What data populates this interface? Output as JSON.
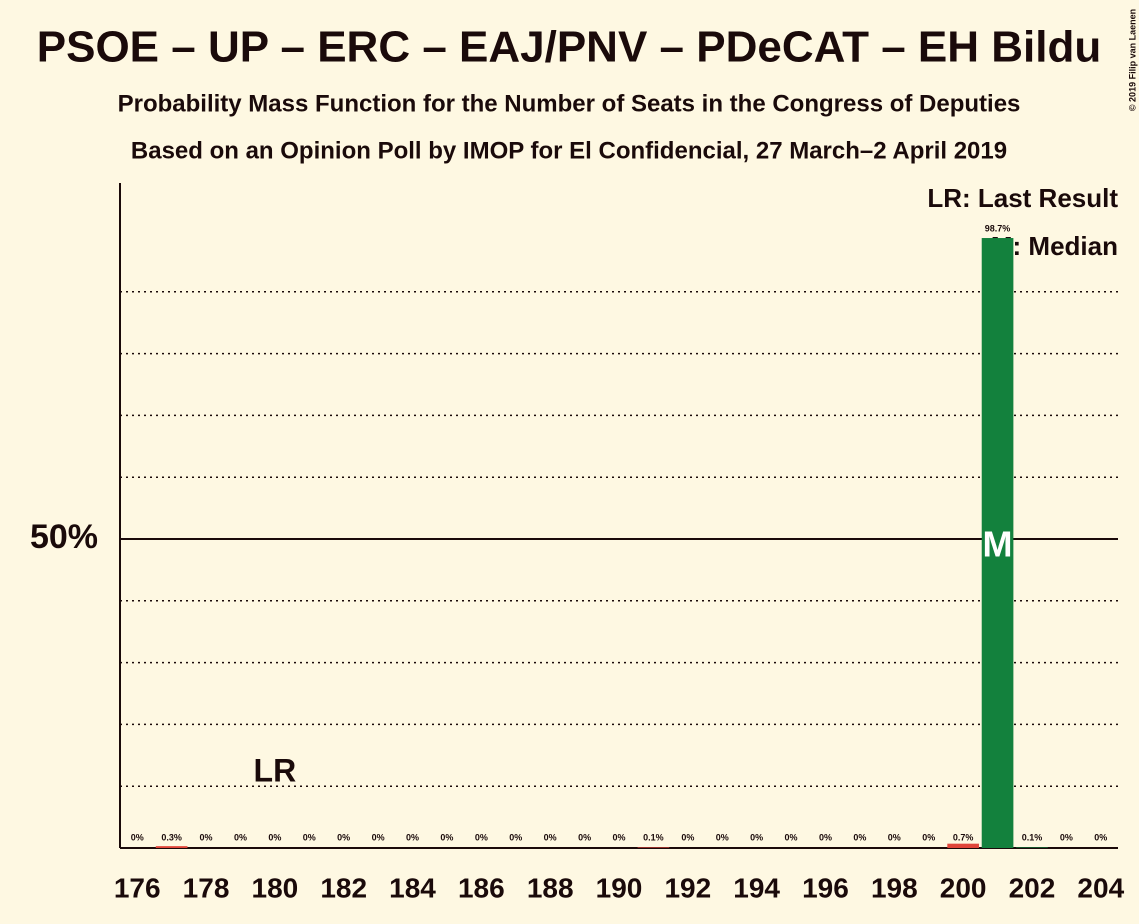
{
  "chart_data": {
    "type": "bar",
    "title": "PSOE – UP – ERC – EAJ/PNV – PDeCAT – EH Bildu",
    "subtitle": "Probability Mass Function for the Number of Seats in the Congress of Deputies",
    "subtitle2": "Based on an Opinion Poll by IMOP for El Confidencial, 27 March–2 April 2019",
    "copyright": "© 2019 Filip van Laenen",
    "categories": [
      176,
      null,
      178,
      null,
      180,
      null,
      182,
      null,
      184,
      null,
      186,
      null,
      188,
      null,
      190,
      null,
      192,
      null,
      194,
      null,
      196,
      null,
      198,
      null,
      200,
      null,
      202,
      null,
      204
    ],
    "values": [
      0,
      0.3,
      0,
      0,
      0,
      0,
      0,
      0,
      0,
      0,
      0,
      0,
      0,
      0,
      0,
      0.1,
      0,
      0,
      0,
      0,
      0,
      0,
      0,
      0,
      0.7,
      98.7,
      0.1,
      0,
      0
    ],
    "value_labels": [
      "0%",
      "0.3%",
      "0%",
      "0%",
      "0%",
      "0%",
      "0%",
      "0%",
      "0%",
      "0%",
      "0%",
      "0%",
      "0%",
      "0%",
      "0%",
      "0.1%",
      "0%",
      "0%",
      "0%",
      "0%",
      "0%",
      "0%",
      "0%",
      "0%",
      "0.7%",
      "98.7%",
      "0.1%",
      "0%",
      "0%"
    ],
    "colors": [
      "#e0453a",
      "#e0453a",
      "#e0453a",
      "#e0453a",
      "#e0453a",
      "#e0453a",
      "#e0453a",
      "#e0453a",
      "#e0453a",
      "#e0453a",
      "#e0453a",
      "#e0453a",
      "#e0453a",
      "#e0453a",
      "#e0453a",
      "#e0453a",
      "#e0453a",
      "#e0453a",
      "#e0453a",
      "#e0453a",
      "#e0453a",
      "#e0453a",
      "#e0453a",
      "#e0453a",
      "#e0453a",
      "#13813d",
      "#13813d",
      "#13813d",
      "#13813d"
    ],
    "ylim": [
      0,
      100
    ],
    "yticks": [
      {
        "value": 50,
        "label": "50%"
      }
    ],
    "ygrid": [
      10,
      20,
      30,
      40,
      60,
      70,
      80,
      90
    ],
    "last_result": {
      "label": "LR",
      "x": 180
    },
    "median": {
      "label": "M",
      "x": 201
    },
    "legend": [
      "LR: Last Result",
      "M: Median"
    ]
  }
}
